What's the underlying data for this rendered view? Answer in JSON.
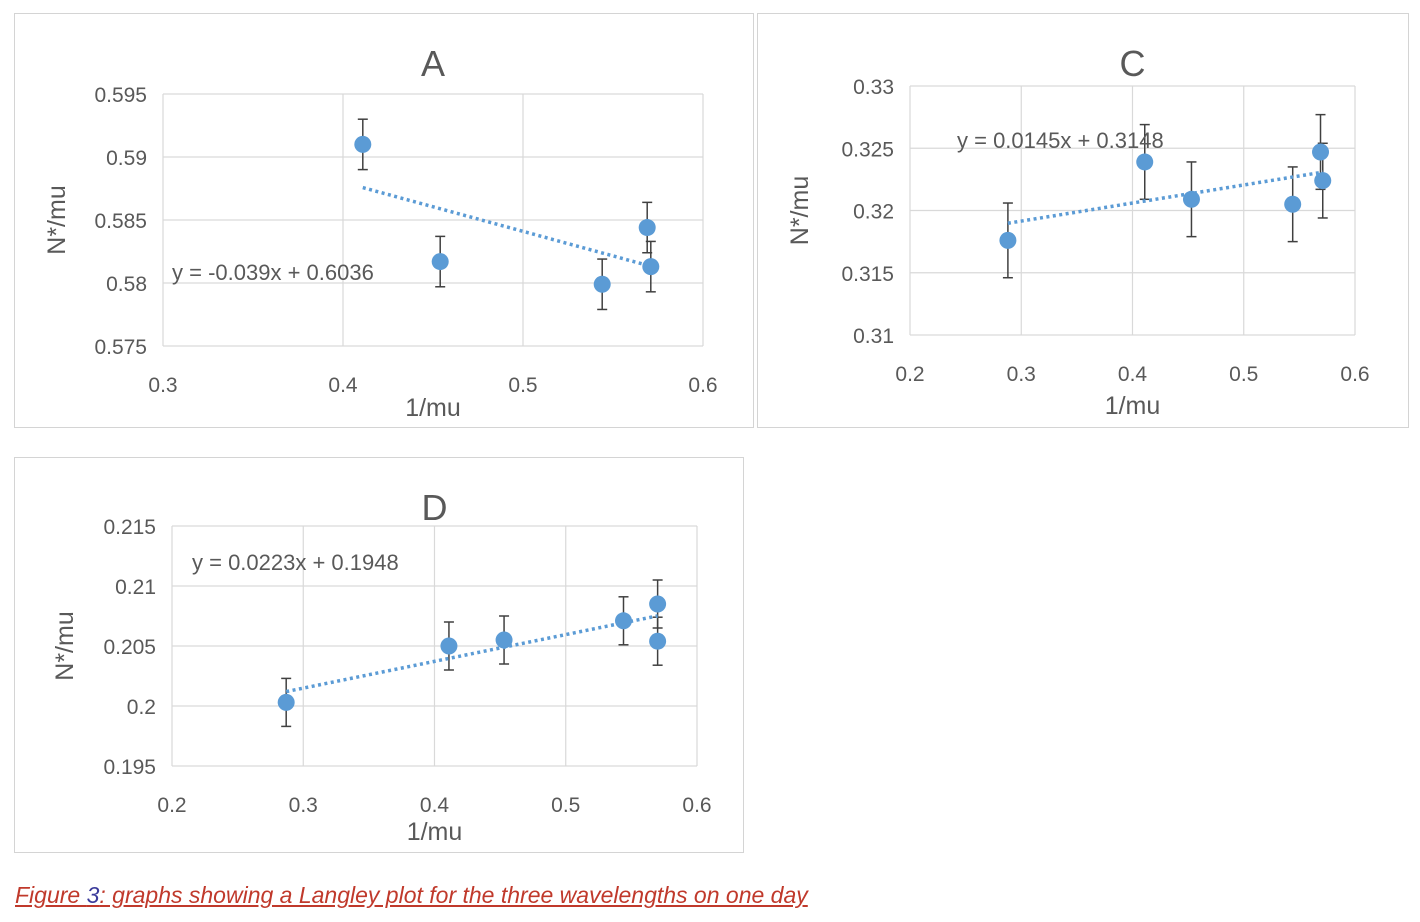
{
  "caption": {
    "prefix": "Figure ",
    "number": "3",
    "suffix": ": graphs showing a Langley plot for the three wavelengths on one day"
  },
  "colors": {
    "point": "#5b9bd5",
    "trendline": "#5b9bd5",
    "grid": "#d9d9d9",
    "text": "#595959",
    "caption": "#c0392b",
    "caption_number": "#3b3b9b"
  },
  "chart_data": [
    {
      "id": "A",
      "type": "scatter",
      "title": "A",
      "xlabel": "1/mu",
      "ylabel": "N*/mu",
      "xlim": [
        0.3,
        0.6
      ],
      "ylim": [
        0.575,
        0.595
      ],
      "xticks": [
        0.3,
        0.4,
        0.5,
        0.6
      ],
      "xtick_labels": [
        "0.3",
        "0.4",
        "0.5",
        "0.6"
      ],
      "yticks": [
        0.575,
        0.58,
        0.585,
        0.59,
        0.595
      ],
      "ytick_labels": [
        "0.575",
        "0.58",
        "0.585",
        "0.59",
        "0.595"
      ],
      "grid": true,
      "points": [
        {
          "x": 0.411,
          "y": 0.591,
          "err": 0.002
        },
        {
          "x": 0.454,
          "y": 0.5817,
          "err": 0.002
        },
        {
          "x": 0.544,
          "y": 0.5799,
          "err": 0.002
        },
        {
          "x": 0.569,
          "y": 0.5844,
          "err": 0.002
        },
        {
          "x": 0.571,
          "y": 0.5813,
          "err": 0.002
        }
      ],
      "trendline": {
        "slope": -0.039,
        "intercept": 0.6036,
        "x_range": [
          0.411,
          0.571
        ],
        "equation": "y = -0.039x + 0.6036"
      }
    },
    {
      "id": "C",
      "type": "scatter",
      "title": "C",
      "xlabel": "1/mu",
      "ylabel": "N*/mu",
      "xlim": [
        0.2,
        0.6
      ],
      "ylim": [
        0.31,
        0.33
      ],
      "xticks": [
        0.2,
        0.3,
        0.4,
        0.5,
        0.6
      ],
      "xtick_labels": [
        "0.2",
        "0.3",
        "0.4",
        "0.5",
        "0.6"
      ],
      "yticks": [
        0.31,
        0.315,
        0.32,
        0.325,
        0.33
      ],
      "ytick_labels": [
        "0.31",
        "0.315",
        "0.32",
        "0.325",
        "0.33"
      ],
      "grid": true,
      "points": [
        {
          "x": 0.288,
          "y": 0.3176,
          "err": 0.003
        },
        {
          "x": 0.411,
          "y": 0.3239,
          "err": 0.003
        },
        {
          "x": 0.453,
          "y": 0.3209,
          "err": 0.003
        },
        {
          "x": 0.544,
          "y": 0.3205,
          "err": 0.003
        },
        {
          "x": 0.569,
          "y": 0.3247,
          "err": 0.003
        },
        {
          "x": 0.571,
          "y": 0.3224,
          "err": 0.003
        }
      ],
      "trendline": {
        "slope": 0.0145,
        "intercept": 0.3148,
        "x_range": [
          0.288,
          0.571
        ],
        "equation": "y = 0.0145x + 0.3148"
      }
    },
    {
      "id": "D",
      "type": "scatter",
      "title": "D",
      "xlabel": "1/mu",
      "ylabel": "N*/mu",
      "xlim": [
        0.2,
        0.6
      ],
      "ylim": [
        0.195,
        0.215
      ],
      "xticks": [
        0.2,
        0.3,
        0.4,
        0.5,
        0.6
      ],
      "xtick_labels": [
        "0.2",
        "0.3",
        "0.4",
        "0.5",
        "0.6"
      ],
      "yticks": [
        0.195,
        0.2,
        0.205,
        0.21,
        0.215
      ],
      "ytick_labels": [
        "0.195",
        "0.2",
        "0.205",
        "0.21",
        "0.215"
      ],
      "grid": true,
      "points": [
        {
          "x": 0.287,
          "y": 0.2003,
          "err": 0.002
        },
        {
          "x": 0.411,
          "y": 0.205,
          "err": 0.002
        },
        {
          "x": 0.453,
          "y": 0.2055,
          "err": 0.002
        },
        {
          "x": 0.544,
          "y": 0.2071,
          "err": 0.002
        },
        {
          "x": 0.57,
          "y": 0.2085,
          "err": 0.002
        },
        {
          "x": 0.57,
          "y": 0.2054,
          "err": 0.002
        }
      ],
      "trendline": {
        "slope": 0.0223,
        "intercept": 0.1948,
        "x_range": [
          0.287,
          0.57
        ],
        "equation": "y = 0.0223x + 0.1948"
      }
    }
  ]
}
